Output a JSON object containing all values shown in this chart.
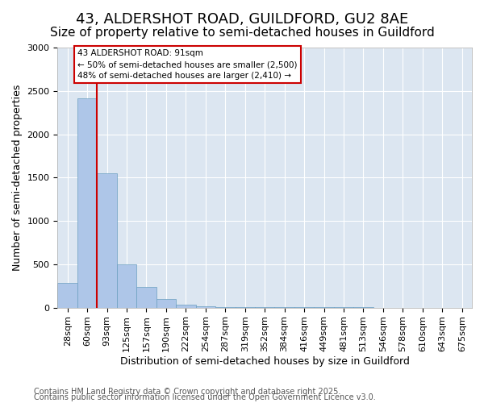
{
  "title_line1": "43, ALDERSHOT ROAD, GUILDFORD, GU2 8AE",
  "title_line2": "Size of property relative to semi-detached houses in Guildford",
  "xlabel": "Distribution of semi-detached houses by size in Guildford",
  "ylabel": "Number of semi-detached properties",
  "bins": [
    "28sqm",
    "60sqm",
    "93sqm",
    "125sqm",
    "157sqm",
    "190sqm",
    "222sqm",
    "254sqm",
    "287sqm",
    "319sqm",
    "352sqm",
    "384sqm",
    "416sqm",
    "449sqm",
    "481sqm",
    "513sqm",
    "546sqm",
    "578sqm",
    "610sqm",
    "643sqm",
    "675sqm"
  ],
  "counts": [
    280,
    2410,
    1550,
    500,
    240,
    100,
    30,
    15,
    8,
    4,
    3,
    2,
    1,
    1,
    1,
    1,
    0,
    0,
    0,
    0,
    0
  ],
  "bar_color": "#aec6e8",
  "bar_edge_color": "#6a9fc0",
  "vline_color": "#cc0000",
  "annotation_title": "43 ALDERSHOT ROAD: 91sqm",
  "annotation_line2": "← 50% of semi-detached houses are smaller (2,500)",
  "annotation_line3": "48% of semi-detached houses are larger (2,410) →",
  "annotation_box_color": "#cc0000",
  "ylim": [
    0,
    3000
  ],
  "yticks": [
    0,
    500,
    1000,
    1500,
    2000,
    2500,
    3000
  ],
  "background_color": "#dce6f1",
  "footer_line1": "Contains HM Land Registry data © Crown copyright and database right 2025.",
  "footer_line2": "Contains public sector information licensed under the Open Government Licence v3.0.",
  "title_fontsize": 13,
  "subtitle_fontsize": 11,
  "axis_label_fontsize": 9,
  "tick_fontsize": 8,
  "footer_fontsize": 7
}
